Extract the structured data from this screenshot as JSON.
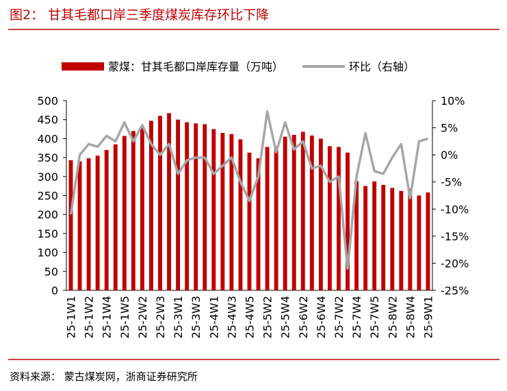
{
  "title": "图2：  甘其毛都口岸三季度煤炭库存环比下降",
  "source": "资料来源：  蒙古煤炭网，浙商证券研究所",
  "chart_data": {
    "type": "bar",
    "categories": [
      "25-1W1",
      null,
      "25-1W2",
      null,
      "25-1W4",
      null,
      "25-1W5",
      null,
      "25-2W2",
      null,
      "25-2W3",
      null,
      "25-3W1",
      null,
      "25-3W3",
      null,
      "25-4W1",
      null,
      "25-4W3",
      null,
      "25-4W5",
      null,
      "25-5W2",
      null,
      "25-5W4",
      null,
      "25-6W2",
      null,
      "25-6W4",
      null,
      "25-7W2",
      null,
      "25-7W4",
      null,
      "25-7W5",
      null,
      "25-8W2",
      null,
      "25-8W4",
      null,
      "25-9W1"
    ],
    "series": [
      {
        "name": "蒙煤：甘其毛都口岸库存量（万吨）",
        "type": "bar",
        "color": "#c00000",
        "values": [
          343,
          340,
          348,
          355,
          370,
          385,
          407,
          420,
          430,
          447,
          460,
          467,
          450,
          443,
          440,
          438,
          425,
          415,
          412,
          398,
          363,
          348,
          378,
          380,
          405,
          410,
          418,
          408,
          400,
          380,
          378,
          363,
          288,
          275,
          287,
          278,
          270,
          262,
          268,
          250,
          258
        ]
      },
      {
        "name": "环比（右轴）",
        "type": "line",
        "axis": "y2",
        "color": "#a6a6a6",
        "values": [
          -11,
          0,
          2,
          1.5,
          3.5,
          2.5,
          6,
          2.5,
          5.5,
          2,
          0,
          2,
          -3.5,
          -1,
          -0.5,
          -0.5,
          -3.5,
          -2,
          -0.5,
          -5,
          -8.5,
          -4,
          8,
          0.5,
          6,
          1,
          2.5,
          -2.5,
          -2,
          -5,
          -4,
          -21,
          -4,
          4,
          -3,
          -3.5,
          -0.5,
          2,
          -8,
          2.5,
          3
        ]
      }
    ],
    "ylim": [
      0,
      500
    ],
    "yticks": [
      0,
      50,
      100,
      150,
      200,
      250,
      300,
      350,
      400,
      450,
      500
    ],
    "y2lim": [
      -25,
      10
    ],
    "y2ticks": [
      {
        "value": -25,
        "label": "-25%"
      },
      {
        "value": -20,
        "label": "-20%"
      },
      {
        "value": -15,
        "label": "-15%"
      },
      {
        "value": -10,
        "label": "-10%"
      },
      {
        "value": -5,
        "label": "-5%"
      },
      {
        "value": 0,
        "label": "0%"
      },
      {
        "value": 5,
        "label": "5%"
      },
      {
        "value": 10,
        "label": "10%"
      }
    ],
    "legend": "top"
  }
}
